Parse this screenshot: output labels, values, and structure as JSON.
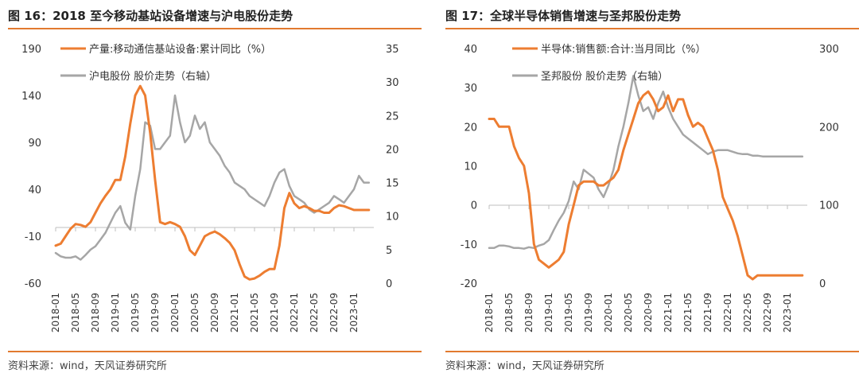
{
  "charts": [
    {
      "title": "图 16：2018 至今移动基站设备增速与沪电股份走势",
      "source": "资料来源：wind，天风证券研究所",
      "chart_data": {
        "type": "line",
        "left_axis": {
          "ticks": [
            190,
            140,
            90,
            40,
            -10,
            -60
          ],
          "ylim": [
            -60,
            190
          ]
        },
        "right_axis": {
          "ticks": [
            35,
            30,
            25,
            20,
            15,
            10,
            5,
            0
          ],
          "ylim": [
            0,
            35
          ]
        },
        "x_tick_labels": [
          "2018-01",
          "2018-05",
          "2018-09",
          "2019-01",
          "2019-05",
          "2019-09",
          "2020-01",
          "2020-05",
          "2020-09",
          "2021-01",
          "2021-05",
          "2021-09",
          "2022-01",
          "2022-05",
          "2022-09",
          "2023-01"
        ],
        "x_range_months": [
          0,
          64
        ],
        "grid": false,
        "legend_position": "top",
        "series": [
          {
            "name": "产量:移动通信基站设备:累计同比（%）",
            "axis": "left",
            "color": "#ed7d31",
            "x": [
              0,
              1,
              2,
              3,
              4,
              5,
              6,
              7,
              8,
              9,
              10,
              11,
              12,
              13,
              14,
              15,
              16,
              17,
              18,
              19,
              20,
              21,
              22,
              23,
              24,
              25,
              26,
              27,
              28,
              29,
              30,
              31,
              32,
              33,
              34,
              35,
              36,
              37,
              38,
              39,
              40,
              41,
              42,
              43,
              44,
              45,
              46,
              47,
              48,
              49,
              50,
              51,
              52,
              53,
              54,
              55,
              56,
              57,
              58,
              59,
              60,
              61,
              62,
              63
            ],
            "y": [
              -20,
              -18,
              -10,
              -2,
              3,
              2,
              0,
              5,
              15,
              25,
              33,
              40,
              50,
              50,
              75,
              110,
              140,
              150,
              140,
              100,
              50,
              5,
              3,
              5,
              3,
              0,
              -10,
              -25,
              -30,
              -20,
              -10,
              -7,
              -5,
              -8,
              -12,
              -17,
              -25,
              -40,
              -53,
              -56,
              -55,
              -52,
              -48,
              -45,
              -45,
              -20,
              20,
              36,
              25,
              20,
              22,
              20,
              17,
              17,
              15,
              15,
              20,
              23,
              22,
              20,
              18,
              18,
              18,
              18
            ]
          },
          {
            "name": "沪电股份 股价走势（右轴）",
            "axis": "right",
            "color": "#a6a6a6",
            "x": [
              0,
              1,
              2,
              3,
              4,
              5,
              6,
              7,
              8,
              9,
              10,
              11,
              12,
              13,
              14,
              15,
              16,
              17,
              18,
              19,
              20,
              21,
              22,
              23,
              24,
              25,
              26,
              27,
              28,
              29,
              30,
              31,
              32,
              33,
              34,
              35,
              36,
              37,
              38,
              39,
              40,
              41,
              42,
              43,
              44,
              45,
              46,
              47,
              48,
              49,
              50,
              51,
              52,
              53,
              54,
              55,
              56,
              57,
              58,
              59,
              60,
              61,
              62,
              63
            ],
            "y": [
              4.5,
              4,
              3.8,
              3.8,
              4,
              3.5,
              4.2,
              5,
              5.5,
              6.5,
              7.5,
              9,
              10.5,
              11.5,
              9,
              8,
              13,
              17,
              24,
              23.5,
              20,
              20,
              21,
              22,
              28,
              24,
              21,
              22,
              25,
              23,
              24,
              21,
              20,
              19,
              17.5,
              16.5,
              15,
              14.5,
              14,
              13,
              12.5,
              12,
              11.5,
              13,
              15,
              16.5,
              17,
              14.5,
              13,
              12.5,
              12,
              11,
              10.5,
              11,
              11.5,
              12,
              13,
              12.5,
              12,
              13,
              14,
              16,
              15,
              15
            ]
          }
        ]
      }
    },
    {
      "title": "图 17：全球半导体销售增速与圣邦股份走势",
      "source": "资料来源：wind，天风证券研究所",
      "chart_data": {
        "type": "line",
        "left_axis": {
          "ticks": [
            40,
            30,
            20,
            10,
            0,
            -10,
            -20
          ],
          "ylim": [
            -20,
            40
          ]
        },
        "right_axis": {
          "ticks": [
            300,
            200,
            100,
            0
          ],
          "ylim": [
            0,
            300
          ]
        },
        "x_tick_labels": [
          "2018-01",
          "2018-05",
          "2018-09",
          "2019-01",
          "2019-05",
          "2019-09",
          "2020-01",
          "2020-05",
          "2020-09",
          "2021-01",
          "2021-05",
          "2021-09",
          "2022-01",
          "2022-05",
          "2022-09",
          "2023-01"
        ],
        "x_range_months": [
          0,
          64
        ],
        "grid": false,
        "legend_position": "top",
        "series": [
          {
            "name": "半导体:销售额:合计:当月同比（%）",
            "axis": "left",
            "color": "#ed7d31",
            "x": [
              0,
              1,
              2,
              3,
              4,
              5,
              6,
              7,
              8,
              9,
              10,
              11,
              12,
              13,
              14,
              15,
              16,
              17,
              18,
              19,
              20,
              21,
              22,
              23,
              24,
              25,
              26,
              27,
              28,
              29,
              30,
              31,
              32,
              33,
              34,
              35,
              36,
              37,
              38,
              39,
              40,
              41,
              42,
              43,
              44,
              45,
              46,
              47,
              48,
              49,
              50,
              51,
              52,
              53,
              54,
              55,
              56,
              57,
              58,
              59,
              60,
              61,
              62,
              63
            ],
            "y": [
              22,
              22,
              20,
              20,
              20,
              15,
              12,
              10,
              3,
              -10,
              -14,
              -15,
              -16,
              -15,
              -14,
              -12,
              -5,
              0,
              5,
              6,
              6,
              6,
              5,
              5,
              6,
              7,
              9,
              14,
              18,
              22,
              26,
              28,
              29,
              27,
              24,
              25,
              28,
              24,
              27,
              27,
              23,
              20,
              21,
              20,
              17,
              14,
              9,
              2,
              -1,
              -4,
              -8,
              -13,
              -18,
              -19,
              -18,
              -18,
              -18,
              -18,
              -18,
              -18,
              -18,
              -18,
              -18,
              -18
            ]
          },
          {
            "name": "圣邦股份 股价走势（右轴）",
            "axis": "right",
            "color": "#a6a6a6",
            "x": [
              0,
              1,
              2,
              3,
              4,
              5,
              6,
              7,
              8,
              9,
              10,
              11,
              12,
              13,
              14,
              15,
              16,
              17,
              18,
              19,
              20,
              21,
              22,
              23,
              24,
              25,
              26,
              27,
              28,
              29,
              30,
              31,
              32,
              33,
              34,
              35,
              36,
              37,
              38,
              39,
              40,
              41,
              42,
              43,
              44,
              45,
              46,
              47,
              48,
              49,
              50,
              51,
              52,
              53,
              54,
              55,
              56,
              57,
              58,
              59,
              60,
              61,
              62,
              63
            ],
            "y": [
              45,
              45,
              48,
              48,
              47,
              45,
              45,
              44,
              46,
              45,
              48,
              50,
              55,
              68,
              80,
              90,
              105,
              130,
              120,
              145,
              140,
              135,
              120,
              110,
              125,
              145,
              175,
              200,
              230,
              265,
              240,
              220,
              225,
              210,
              230,
              245,
              225,
              210,
              200,
              190,
              185,
              180,
              175,
              170,
              165,
              168,
              170,
              170,
              170,
              168,
              166,
              165,
              165,
              163,
              163,
              162,
              162,
              162,
              162,
              162,
              162,
              162,
              162,
              162
            ]
          }
        ]
      }
    }
  ]
}
